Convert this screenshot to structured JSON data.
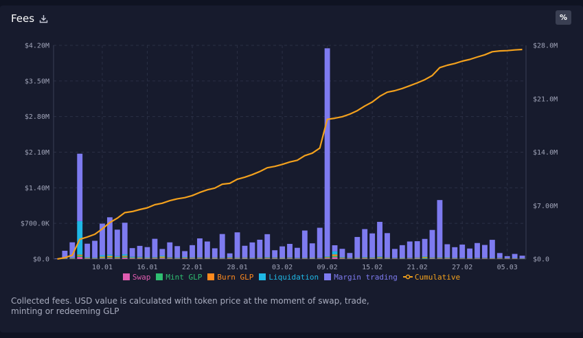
{
  "header": {
    "title": "Fees",
    "percent_label": "%"
  },
  "description": "Collected fees. USD value is calculated with token price at the moment of swap, trade, minting or redeeming GLP",
  "chart_data": {
    "type": "bar",
    "stacked": true,
    "y_ticks_left": [
      "$0.0",
      "$700.0K",
      "$1.40M",
      "$2.10M",
      "$2.80M",
      "$3.50M",
      "$4.20M"
    ],
    "y_ticks_right": [
      "$0.0",
      "$7.00M",
      "$14.0M",
      "$21.0M",
      "$28.0M"
    ],
    "ylim": [
      0,
      4200000
    ],
    "ylim_right": [
      0,
      28000000
    ],
    "x_tick_labels": [
      "10.01",
      "16.01",
      "22.01",
      "28.01",
      "03.02",
      "09.02",
      "15.02",
      "21.02",
      "27.02",
      "05.03"
    ],
    "x_tick_indices": [
      6,
      12,
      18,
      24,
      30,
      36,
      42,
      48,
      54,
      60
    ],
    "categories": [
      "03.01",
      "04.01",
      "05.01",
      "06.01",
      "07.01",
      "08.01",
      "09.01",
      "10.01",
      "11.01",
      "12.01",
      "13.01",
      "14.01",
      "15.01",
      "16.01",
      "17.01",
      "18.01",
      "19.01",
      "20.01",
      "21.01",
      "22.01",
      "23.01",
      "24.01",
      "25.01",
      "26.01",
      "27.01",
      "28.01",
      "29.01",
      "30.01",
      "31.01",
      "01.02",
      "02.02",
      "03.02",
      "04.02",
      "05.02",
      "06.02",
      "07.02",
      "08.02",
      "09.02",
      "10.02",
      "11.02",
      "12.02",
      "13.02",
      "14.02",
      "15.02",
      "16.02",
      "17.02",
      "18.02",
      "19.02",
      "20.02",
      "21.02",
      "22.02",
      "23.02",
      "24.02",
      "25.02",
      "26.02",
      "27.02",
      "28.02",
      "01.03",
      "02.03",
      "03.03",
      "04.03",
      "05.03",
      "06.03"
    ],
    "series": [
      {
        "name": "Swap",
        "color": "#e05cb0",
        "values": [
          500,
          2000,
          5000,
          40000,
          8000,
          5000,
          12000,
          15000,
          10000,
          25000,
          10000,
          8000,
          7000,
          8000,
          15000,
          8000,
          6000,
          9000,
          7000,
          8000,
          6000,
          7000,
          6000,
          9000,
          6000,
          7000,
          6000,
          6000,
          8000,
          8000,
          7000,
          8000,
          5000,
          6000,
          7000,
          6000,
          12000,
          35000,
          8000,
          6000,
          6000,
          8000,
          7000,
          9000,
          6000,
          5000,
          6000,
          6000,
          7000,
          6000,
          7000,
          8000,
          8000,
          6000,
          5000,
          5000,
          6000,
          6000,
          5000,
          6000,
          4000,
          5000,
          4000
        ]
      },
      {
        "name": "Mint GLP",
        "color": "#2fbf71",
        "values": [
          500,
          2000,
          5000,
          25000,
          8000,
          5000,
          15000,
          20000,
          12000,
          20000,
          9000,
          8000,
          6000,
          7000,
          12000,
          7000,
          5000,
          8000,
          6000,
          7000,
          6000,
          6000,
          5000,
          8000,
          6000,
          6000,
          5000,
          6000,
          8000,
          7000,
          6000,
          7000,
          5000,
          5000,
          6000,
          5000,
          10000,
          25000,
          8000,
          5000,
          6000,
          8000,
          7000,
          12000,
          6000,
          5000,
          6000,
          5000,
          6000,
          20000,
          6000,
          7000,
          7000,
          5000,
          5000,
          4000,
          5000,
          5000,
          4000,
          5000,
          4000,
          4000,
          3000
        ]
      },
      {
        "name": "Burn GLP",
        "color": "#ff8a1e",
        "values": [
          500,
          3000,
          8000,
          20000,
          10000,
          8000,
          18000,
          25000,
          15000,
          18000,
          10000,
          12000,
          9000,
          10000,
          20000,
          10000,
          7000,
          11000,
          9000,
          10000,
          8000,
          8000,
          7000,
          10000,
          8000,
          8000,
          7000,
          8000,
          10000,
          8000,
          7000,
          8000,
          6000,
          7000,
          7000,
          6000,
          15000,
          30000,
          10000,
          7000,
          8000,
          10000,
          9000,
          14000,
          8000,
          6000,
          7000,
          6000,
          8000,
          15000,
          8000,
          9000,
          9000,
          7000,
          6000,
          5000,
          6000,
          6000,
          5000,
          6000,
          5000,
          5000,
          4000
        ]
      },
      {
        "name": "Liquidation",
        "color": "#1fb8e6",
        "values": [
          500,
          5000,
          10000,
          660000,
          15000,
          10000,
          30000,
          25000,
          20000,
          30000,
          15000,
          15000,
          12000,
          12000,
          20000,
          12000,
          10000,
          12000,
          10000,
          10000,
          9000,
          9000,
          8000,
          12000,
          9000,
          9000,
          8000,
          9000,
          12000,
          9000,
          8000,
          9000,
          7000,
          8000,
          8000,
          7000,
          15000,
          60000,
          12000,
          8000,
          8000,
          12000,
          10000,
          15000,
          9000,
          7000,
          8000,
          7000,
          9000,
          12000,
          10000,
          10000,
          10000,
          8000,
          7000,
          6000,
          7000,
          7000,
          6000,
          7000,
          5000,
          6000,
          4000
        ]
      },
      {
        "name": "Margin trading",
        "color": "#7e7bf0",
        "values": [
          8000,
          150000,
          300000,
          1325000,
          260000,
          330000,
          620000,
          735000,
          520000,
          620000,
          170000,
          215000,
          200000,
          360000,
          130000,
          290000,
          225000,
          115000,
          240000,
          370000,
          315000,
          180000,
          465000,
          72000,
          495000,
          230000,
          300000,
          350000,
          450000,
          140000,
          220000,
          265000,
          197000,
          534000,
          280000,
          590000,
          4090000,
          120000,
          162000,
          92000,
          405000,
          550000,
          470000,
          680000,
          480000,
          175000,
          245000,
          320000,
          320000,
          342000,
          540000,
          1125000,
          256000,
          206000,
          260000,
          186000,
          290000,
          252000,
          357000,
          93000,
          38000,
          80000,
          50000
        ]
      },
      {
        "name": "Cumulative",
        "color": "#f3a11d",
        "values": [
          0,
          170000,
          500000,
          2580000,
          2880000,
          3240000,
          3950000,
          4770000,
          5350000,
          6080000,
          6220000,
          6480000,
          6710000,
          7110000,
          7310000,
          7640000,
          7890000,
          8040000,
          8310000,
          8720000,
          9070000,
          9290000,
          9800000,
          9910000,
          10450000,
          10720000,
          11060000,
          11460000,
          11960000,
          12140000,
          12400000,
          12710000,
          12940000,
          13540000,
          13870000,
          14530000,
          18300000,
          18450000,
          18650000,
          18990000,
          19440000,
          20050000,
          20570000,
          21320000,
          21860000,
          22060000,
          22350000,
          22710000,
          23080000,
          23500000,
          24050000,
          25080000,
          25390000,
          25620000,
          25930000,
          26150000,
          26470000,
          26760000,
          27160000,
          27270000,
          27310000,
          27400000,
          27460000
        ]
      }
    ],
    "legend_position": "bottom",
    "grid": true
  }
}
